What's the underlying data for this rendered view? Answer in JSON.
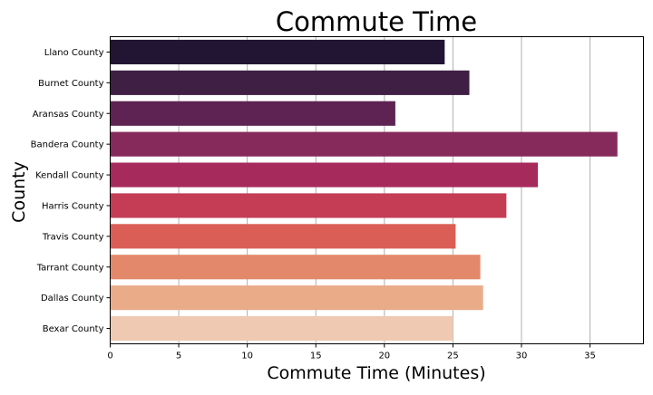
{
  "chart_data": {
    "type": "bar",
    "orientation": "horizontal",
    "title": "Commute Time",
    "xlabel": "Commute Time (Minutes)",
    "ylabel": "County",
    "categories": [
      "Llano County",
      "Burnet County",
      "Aransas County",
      "Bandera County",
      "Kendall County",
      "Harris County",
      "Travis County",
      "Tarrant County",
      "Dallas County",
      "Bexar County"
    ],
    "values": [
      24.4,
      26.2,
      20.8,
      37.0,
      31.2,
      28.9,
      25.2,
      27.0,
      27.2,
      25.0
    ],
    "xlim": [
      0,
      38.9
    ],
    "xticks": [
      0,
      5,
      10,
      15,
      20,
      25,
      30,
      35
    ],
    "colors": [
      "#221533",
      "#3f1f44",
      "#5e2352",
      "#862a5c",
      "#a72a5d",
      "#c43d55",
      "#da5e55",
      "#e3886b",
      "#eaab89",
      "#f0c9b2"
    ],
    "grid": "x",
    "legend": "none"
  }
}
